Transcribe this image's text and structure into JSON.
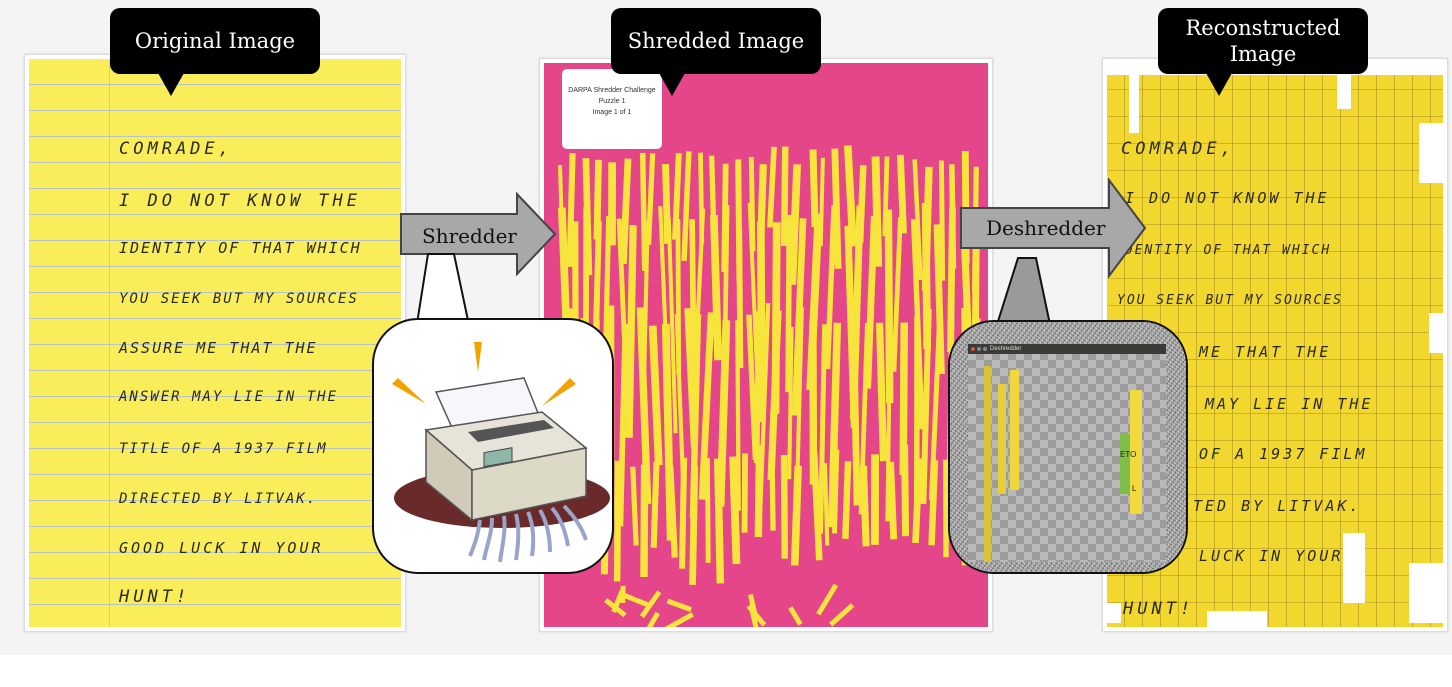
{
  "callouts": {
    "original": "Original Image",
    "shredded": "Shredded Image",
    "reconstructed_line1": "Reconstructed",
    "reconstructed_line2": "Image"
  },
  "arrows": {
    "shredder": "Shredder",
    "deshredder": "Deshredder"
  },
  "note_lines": [
    "COMRADE,",
    "I DO NOT KNOW THE",
    "IDENTITY OF THAT WHICH",
    "YOU SEEK BUT MY SOURCES",
    "ASSURE ME THAT THE",
    "ANSWER MAY LIE IN THE",
    "TITLE OF A 1937 FILM",
    "DIRECTED BY LITVAK.",
    "GOOD LUCK IN YOUR",
    "HUNT!"
  ],
  "reconstructed_lines": [
    "COMRADE,",
    "I DO NOT KNOW THE",
    "IDENTITY OF THAT WHICH",
    "YOU SEEK BUT MY SOURCES",
    "ME THAT THE",
    "MAY LIE IN THE",
    "OF A 1937 FILM",
    "TED BY LITVAK.",
    "LUCK IN YOUR",
    "HUNT!"
  ],
  "puzzle_card": {
    "line1": "DARPA Shredder Challenge",
    "line2": "Puzzle 1",
    "line3": "Image 1 of 1"
  },
  "deshredder_window_title": "Deshredder",
  "strip_text": [
    "ETO",
    "L"
  ],
  "colors": {
    "note_yellow": "#f9ed5a",
    "shred_pink": "#e5468a",
    "shred_yellow": "#f7e43c",
    "callout_black": "#000000",
    "arrow_gray": "#a8a8a8"
  },
  "icons": [
    "paper-shredder-clipart",
    "deshredder-app-screenshot"
  ]
}
